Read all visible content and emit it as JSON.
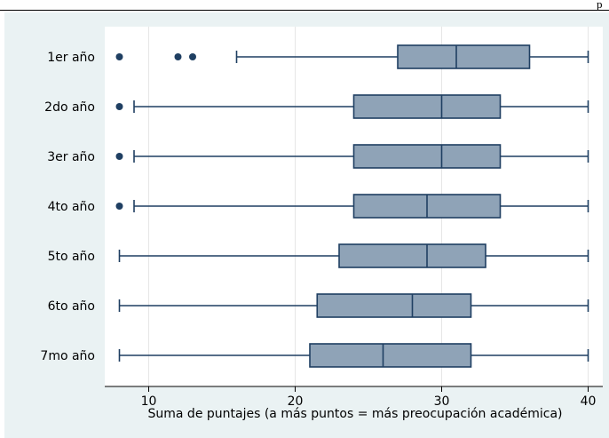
{
  "header": {
    "corner_text": "p"
  },
  "colors": {
    "background": "#eaf2f3",
    "plot_area": "#ffffff",
    "box_fill": "#8fa3b7",
    "box_stroke": "#1f3f62",
    "outlier": "#1f3f62",
    "grid": "#e6e6e6"
  },
  "chart_data": {
    "type": "boxplot",
    "orientation": "horizontal",
    "title": "",
    "xlabel": "Suma de puntajes (a más puntos = más preocupación académica)",
    "ylabel": "",
    "xlim": [
      7,
      41
    ],
    "xticks": [
      10,
      20,
      30,
      40
    ],
    "grid": "vertical",
    "categories": [
      "1er año",
      "2do año",
      "3er año",
      "4to año",
      "5to año",
      "6to año",
      "7mo año"
    ],
    "boxes": [
      {
        "category": "1er año",
        "whisker_low": 16,
        "q1": 27,
        "median": 31,
        "q3": 36,
        "whisker_high": 40,
        "outliers": [
          8,
          12,
          13
        ]
      },
      {
        "category": "2do año",
        "whisker_low": 9,
        "q1": 24,
        "median": 30,
        "q3": 34,
        "whisker_high": 40,
        "outliers": [
          8
        ]
      },
      {
        "category": "3er año",
        "whisker_low": 9,
        "q1": 24,
        "median": 30,
        "q3": 34,
        "whisker_high": 40,
        "outliers": [
          8
        ]
      },
      {
        "category": "4to año",
        "whisker_low": 9,
        "q1": 24,
        "median": 29,
        "q3": 34,
        "whisker_high": 40,
        "outliers": [
          8
        ]
      },
      {
        "category": "5to año",
        "whisker_low": 8,
        "q1": 23,
        "median": 29,
        "q3": 33,
        "whisker_high": 40,
        "outliers": []
      },
      {
        "category": "6to año",
        "whisker_low": 8,
        "q1": 21.5,
        "median": 28,
        "q3": 32,
        "whisker_high": 40,
        "outliers": []
      },
      {
        "category": "7mo año",
        "whisker_low": 8,
        "q1": 21,
        "median": 26,
        "q3": 32,
        "whisker_high": 40,
        "outliers": []
      }
    ]
  }
}
